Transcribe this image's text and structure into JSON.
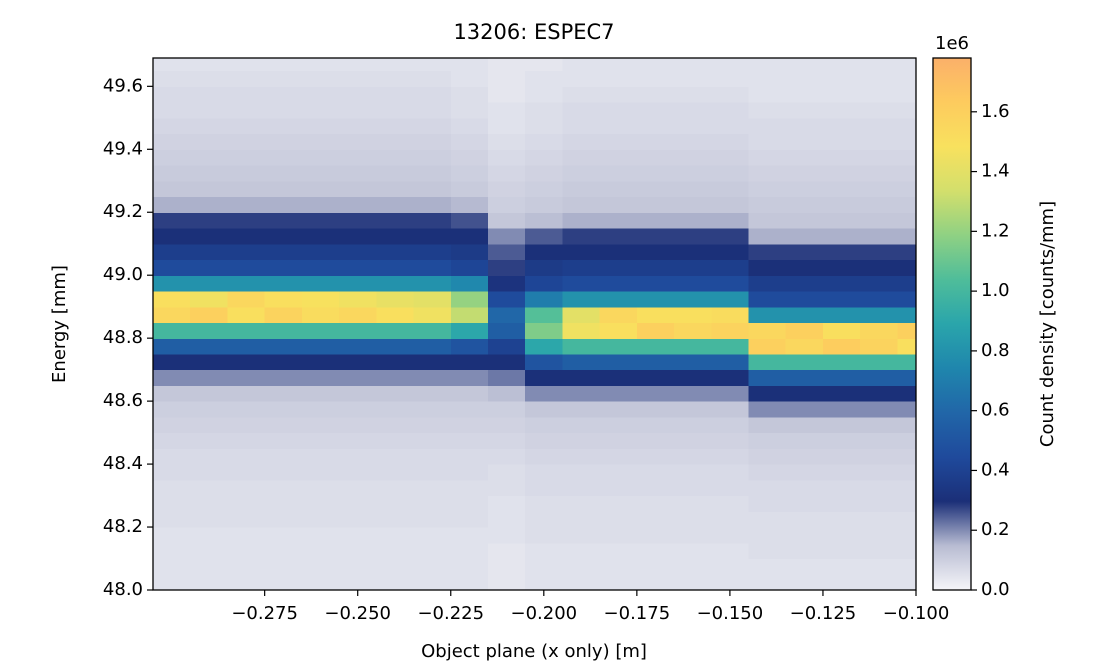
{
  "chart_data": {
    "type": "heatmap",
    "title": "13206: ESPEC7",
    "xlabel": "Object plane (x only) [m]",
    "ylabel": "Energy [mm]",
    "xlim": [
      -0.305,
      -0.1
    ],
    "ylim": [
      48.0,
      49.69
    ],
    "xticks": [
      {
        "value": -0.275,
        "label": "−0.275"
      },
      {
        "value": -0.25,
        "label": "−0.250"
      },
      {
        "value": -0.225,
        "label": "−0.225"
      },
      {
        "value": -0.2,
        "label": "−0.200"
      },
      {
        "value": -0.175,
        "label": "−0.175"
      },
      {
        "value": -0.15,
        "label": "−0.150"
      },
      {
        "value": -0.125,
        "label": "−0.125"
      },
      {
        "value": -0.1,
        "label": "−0.100"
      }
    ],
    "yticks": [
      {
        "value": 48.0,
        "label": "48.0"
      },
      48.2,
      48.4,
      48.6,
      48.8,
      {
        "value": 49.0,
        "label": "49.0"
      },
      49.2,
      49.4,
      49.6
    ],
    "x_edges": [
      -0.305,
      -0.295,
      -0.285,
      -0.275,
      -0.265,
      -0.255,
      -0.245,
      -0.235,
      -0.225,
      -0.215,
      -0.205,
      -0.195,
      -0.185,
      -0.175,
      -0.165,
      -0.155,
      -0.145,
      -0.135,
      -0.125,
      -0.115,
      -0.105,
      -0.1
    ],
    "y_edges": [
      48.0,
      48.05,
      48.1,
      48.15,
      48.2,
      48.25,
      48.3,
      48.35,
      48.4,
      48.45,
      48.5,
      48.55,
      48.6,
      48.65,
      48.7,
      48.75,
      48.8,
      48.85,
      48.9,
      48.95,
      49.0,
      49.05,
      49.1,
      49.15,
      49.2,
      49.25,
      49.3,
      49.35,
      49.4,
      49.45,
      49.5,
      49.55,
      49.6,
      49.65,
      49.7
    ],
    "values": [
      [
        0.05,
        0.05,
        0.05,
        0.05,
        0.06,
        0.06,
        0.06,
        0.07,
        0.07,
        0.08,
        0.09,
        0.1,
        0.12,
        0.2,
        0.3,
        0.55,
        1.0,
        1.55,
        1.5,
        0.8,
        0.45,
        0.38,
        0.3,
        0.28,
        0.16,
        0.12,
        0.11,
        0.1,
        0.09,
        0.08,
        0.07,
        0.07,
        0.06,
        0.05
      ],
      [
        0.05,
        0.05,
        0.05,
        0.05,
        0.06,
        0.06,
        0.06,
        0.07,
        0.07,
        0.08,
        0.09,
        0.1,
        0.12,
        0.2,
        0.3,
        0.55,
        1.0,
        1.6,
        1.45,
        0.8,
        0.45,
        0.38,
        0.3,
        0.28,
        0.16,
        0.12,
        0.11,
        0.1,
        0.09,
        0.08,
        0.07,
        0.07,
        0.06,
        0.05
      ],
      [
        0.05,
        0.05,
        0.05,
        0.05,
        0.06,
        0.06,
        0.06,
        0.07,
        0.07,
        0.08,
        0.09,
        0.1,
        0.12,
        0.2,
        0.3,
        0.55,
        1.0,
        1.5,
        1.55,
        0.8,
        0.45,
        0.38,
        0.3,
        0.28,
        0.16,
        0.12,
        0.11,
        0.1,
        0.09,
        0.08,
        0.07,
        0.07,
        0.06,
        0.05
      ],
      [
        0.05,
        0.05,
        0.05,
        0.05,
        0.06,
        0.06,
        0.06,
        0.07,
        0.07,
        0.08,
        0.09,
        0.1,
        0.12,
        0.2,
        0.3,
        0.55,
        1.0,
        1.58,
        1.5,
        0.8,
        0.45,
        0.38,
        0.3,
        0.28,
        0.16,
        0.12,
        0.11,
        0.1,
        0.09,
        0.08,
        0.07,
        0.07,
        0.06,
        0.05
      ],
      [
        0.05,
        0.05,
        0.05,
        0.05,
        0.06,
        0.06,
        0.06,
        0.07,
        0.07,
        0.08,
        0.09,
        0.1,
        0.12,
        0.2,
        0.3,
        0.55,
        1.0,
        1.52,
        1.48,
        0.8,
        0.45,
        0.38,
        0.3,
        0.28,
        0.16,
        0.12,
        0.11,
        0.1,
        0.09,
        0.08,
        0.07,
        0.07,
        0.06,
        0.05
      ],
      [
        0.05,
        0.05,
        0.05,
        0.05,
        0.06,
        0.06,
        0.06,
        0.07,
        0.07,
        0.08,
        0.09,
        0.1,
        0.12,
        0.2,
        0.3,
        0.55,
        1.0,
        1.55,
        1.45,
        0.8,
        0.45,
        0.38,
        0.3,
        0.28,
        0.16,
        0.12,
        0.11,
        0.1,
        0.09,
        0.08,
        0.07,
        0.07,
        0.06,
        0.05
      ],
      [
        0.05,
        0.05,
        0.05,
        0.05,
        0.06,
        0.06,
        0.06,
        0.07,
        0.07,
        0.08,
        0.09,
        0.1,
        0.12,
        0.2,
        0.3,
        0.55,
        1.0,
        1.5,
        1.42,
        0.8,
        0.45,
        0.38,
        0.3,
        0.28,
        0.16,
        0.12,
        0.11,
        0.1,
        0.09,
        0.08,
        0.07,
        0.07,
        0.06,
        0.05
      ],
      [
        0.05,
        0.05,
        0.05,
        0.05,
        0.06,
        0.06,
        0.06,
        0.07,
        0.07,
        0.08,
        0.09,
        0.1,
        0.12,
        0.2,
        0.3,
        0.55,
        1.0,
        1.45,
        1.4,
        0.8,
        0.45,
        0.38,
        0.3,
        0.28,
        0.16,
        0.12,
        0.11,
        0.1,
        0.09,
        0.08,
        0.07,
        0.07,
        0.06,
        0.05
      ],
      [
        0.05,
        0.05,
        0.05,
        0.05,
        0.06,
        0.06,
        0.06,
        0.07,
        0.07,
        0.08,
        0.09,
        0.1,
        0.12,
        0.2,
        0.3,
        0.5,
        0.9,
        1.3,
        1.2,
        0.75,
        0.42,
        0.36,
        0.3,
        0.26,
        0.15,
        0.11,
        0.1,
        0.09,
        0.08,
        0.07,
        0.06,
        0.06,
        0.05,
        0.05
      ],
      [
        0.04,
        0.04,
        0.04,
        0.05,
        0.05,
        0.05,
        0.06,
        0.06,
        0.07,
        0.08,
        0.09,
        0.1,
        0.14,
        0.22,
        0.3,
        0.4,
        0.55,
        0.6,
        0.45,
        0.32,
        0.28,
        0.25,
        0.2,
        0.12,
        0.1,
        0.09,
        0.08,
        0.07,
        0.06,
        0.05,
        0.05,
        0.04,
        0.04,
        0.04
      ],
      [
        0.05,
        0.05,
        0.05,
        0.06,
        0.06,
        0.06,
        0.07,
        0.07,
        0.08,
        0.09,
        0.1,
        0.12,
        0.2,
        0.3,
        0.5,
        0.9,
        1.15,
        1.05,
        0.7,
        0.42,
        0.36,
        0.3,
        0.25,
        0.14,
        0.11,
        0.1,
        0.09,
        0.08,
        0.07,
        0.06,
        0.06,
        0.05,
        0.05,
        0.04
      ],
      [
        0.05,
        0.05,
        0.05,
        0.06,
        0.06,
        0.06,
        0.07,
        0.07,
        0.08,
        0.09,
        0.1,
        0.12,
        0.2,
        0.3,
        0.55,
        1.0,
        1.45,
        1.4,
        0.8,
        0.45,
        0.38,
        0.3,
        0.28,
        0.16,
        0.12,
        0.11,
        0.1,
        0.09,
        0.08,
        0.07,
        0.07,
        0.06,
        0.05,
        0.05
      ],
      [
        0.05,
        0.05,
        0.05,
        0.06,
        0.06,
        0.06,
        0.07,
        0.07,
        0.08,
        0.09,
        0.1,
        0.12,
        0.2,
        0.3,
        0.55,
        1.0,
        1.5,
        1.55,
        0.8,
        0.45,
        0.38,
        0.3,
        0.28,
        0.16,
        0.12,
        0.11,
        0.1,
        0.09,
        0.08,
        0.07,
        0.07,
        0.06,
        0.05,
        0.05
      ],
      [
        0.05,
        0.05,
        0.05,
        0.06,
        0.06,
        0.06,
        0.07,
        0.07,
        0.08,
        0.09,
        0.1,
        0.12,
        0.2,
        0.3,
        0.55,
        1.0,
        1.6,
        1.5,
        0.8,
        0.45,
        0.38,
        0.3,
        0.28,
        0.16,
        0.12,
        0.11,
        0.1,
        0.09,
        0.08,
        0.07,
        0.07,
        0.06,
        0.05,
        0.05
      ],
      [
        0.05,
        0.05,
        0.05,
        0.06,
        0.06,
        0.06,
        0.07,
        0.07,
        0.08,
        0.09,
        0.1,
        0.12,
        0.2,
        0.3,
        0.55,
        1.0,
        1.55,
        1.5,
        0.8,
        0.45,
        0.38,
        0.3,
        0.28,
        0.16,
        0.12,
        0.11,
        0.1,
        0.09,
        0.08,
        0.07,
        0.07,
        0.06,
        0.05,
        0.05
      ],
      [
        0.05,
        0.05,
        0.05,
        0.06,
        0.06,
        0.06,
        0.07,
        0.07,
        0.08,
        0.09,
        0.1,
        0.12,
        0.2,
        0.3,
        0.55,
        1.0,
        1.58,
        1.52,
        0.8,
        0.45,
        0.38,
        0.3,
        0.28,
        0.16,
        0.12,
        0.11,
        0.1,
        0.09,
        0.08,
        0.07,
        0.07,
        0.06,
        0.05,
        0.05
      ],
      [
        0.05,
        0.05,
        0.06,
        0.06,
        0.06,
        0.07,
        0.07,
        0.08,
        0.09,
        0.1,
        0.12,
        0.2,
        0.3,
        0.55,
        1.0,
        1.6,
        1.55,
        0.8,
        0.45,
        0.38,
        0.3,
        0.28,
        0.16,
        0.12,
        0.11,
        0.1,
        0.09,
        0.08,
        0.07,
        0.07,
        0.06,
        0.05,
        0.05,
        0.05
      ],
      [
        0.05,
        0.05,
        0.06,
        0.06,
        0.06,
        0.07,
        0.07,
        0.08,
        0.09,
        0.1,
        0.12,
        0.2,
        0.3,
        0.55,
        1.0,
        1.55,
        1.6,
        0.8,
        0.45,
        0.38,
        0.3,
        0.28,
        0.16,
        0.12,
        0.11,
        0.1,
        0.09,
        0.08,
        0.07,
        0.07,
        0.06,
        0.05,
        0.05,
        0.05
      ],
      [
        0.05,
        0.05,
        0.06,
        0.06,
        0.06,
        0.07,
        0.07,
        0.08,
        0.09,
        0.1,
        0.12,
        0.2,
        0.3,
        0.55,
        1.0,
        1.62,
        1.5,
        0.8,
        0.45,
        0.38,
        0.3,
        0.28,
        0.16,
        0.12,
        0.11,
        0.1,
        0.09,
        0.08,
        0.07,
        0.07,
        0.06,
        0.05,
        0.05,
        0.05
      ],
      [
        0.05,
        0.05,
        0.06,
        0.06,
        0.06,
        0.07,
        0.07,
        0.08,
        0.09,
        0.1,
        0.12,
        0.2,
        0.3,
        0.55,
        1.0,
        1.58,
        1.55,
        0.8,
        0.45,
        0.38,
        0.3,
        0.28,
        0.16,
        0.12,
        0.11,
        0.1,
        0.09,
        0.08,
        0.07,
        0.07,
        0.06,
        0.05,
        0.05,
        0.05
      ],
      [
        0.05,
        0.05,
        0.06,
        0.06,
        0.06,
        0.07,
        0.07,
        0.08,
        0.09,
        0.1,
        0.12,
        0.2,
        0.3,
        0.55,
        1.0,
        1.5,
        1.6,
        0.8,
        0.45,
        0.38,
        0.3,
        0.28,
        0.16,
        0.12,
        0.11,
        0.1,
        0.09,
        0.08,
        0.07,
        0.07,
        0.06,
        0.05,
        0.05,
        0.05
      ]
    ],
    "colorbar": {
      "label": "Count density [counts/mm]",
      "offset_label": "1e6",
      "clim": [
        0,
        1.78
      ],
      "ticks": [
        {
          "value": 0,
          "label": "0.0"
        },
        0.2,
        0.4,
        0.6,
        0.8,
        {
          "value": 1,
          "label": "1.0"
        },
        1.2,
        1.4,
        1.6
      ],
      "colormap": [
        "#f5f5f9",
        "#b8bcd2",
        "#1b2f78",
        "#1f4a9c",
        "#2166a8",
        "#1f86ad",
        "#2aa5ab",
        "#4fbd9a",
        "#8fd183",
        "#d3df6c",
        "#f8e15e",
        "#fdcb5e",
        "#fbb06a"
      ]
    }
  }
}
